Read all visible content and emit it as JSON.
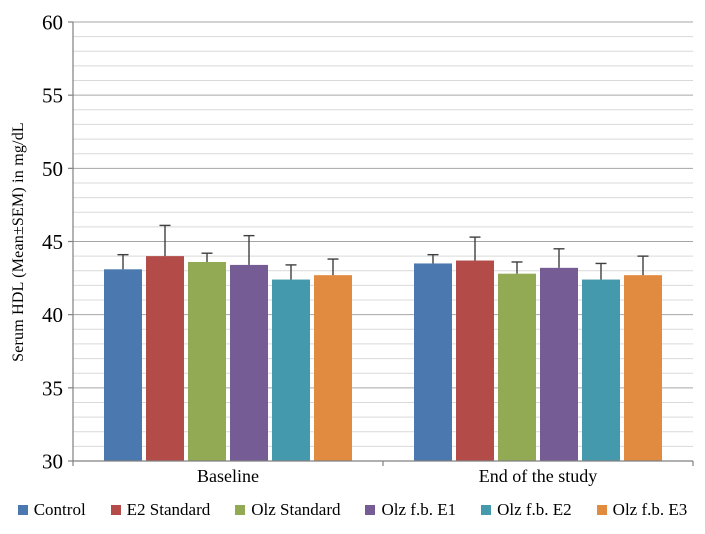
{
  "chart_data": {
    "type": "bar",
    "title": "",
    "ylabel": "Serum HDL (Mean±SEM) in mg/dL",
    "xlabel": "",
    "categories": [
      "Baseline",
      "End of the study"
    ],
    "ylim": [
      30,
      60
    ],
    "yticks": [
      30,
      35,
      40,
      45,
      50,
      55,
      60
    ],
    "minor_unit": 1,
    "grid": true,
    "legend_position": "bottom",
    "error_bars": "plus_sem",
    "series": [
      {
        "name": "Control",
        "color": "#4B79AF",
        "values": [
          43.1,
          43.5
        ],
        "sem": [
          1.0,
          0.6
        ]
      },
      {
        "name": "E2 Standard",
        "color": "#B34C48",
        "values": [
          44.0,
          43.7
        ],
        "sem": [
          2.1,
          1.6
        ]
      },
      {
        "name": "Olz Standard",
        "color": "#92AA53",
        "values": [
          43.6,
          42.8
        ],
        "sem": [
          0.6,
          0.8
        ]
      },
      {
        "name": "Olz f.b. E1",
        "color": "#765C95",
        "values": [
          43.4,
          43.2
        ],
        "sem": [
          2.0,
          1.3
        ]
      },
      {
        "name": "Olz f.b. E2",
        "color": "#4499AD",
        "values": [
          42.4,
          42.4
        ],
        "sem": [
          1.0,
          1.1
        ]
      },
      {
        "name": "Olz f.b. E3",
        "color": "#E18B40",
        "values": [
          42.7,
          42.7
        ],
        "sem": [
          1.1,
          1.3
        ]
      }
    ],
    "style_colors": {
      "grid_minor": "#D9D9D9",
      "grid_major": "#A6A6A6",
      "axis": "#808080",
      "error_bar": "#3F3F3F",
      "text": "#000000",
      "background": "#FFFFFF"
    }
  }
}
